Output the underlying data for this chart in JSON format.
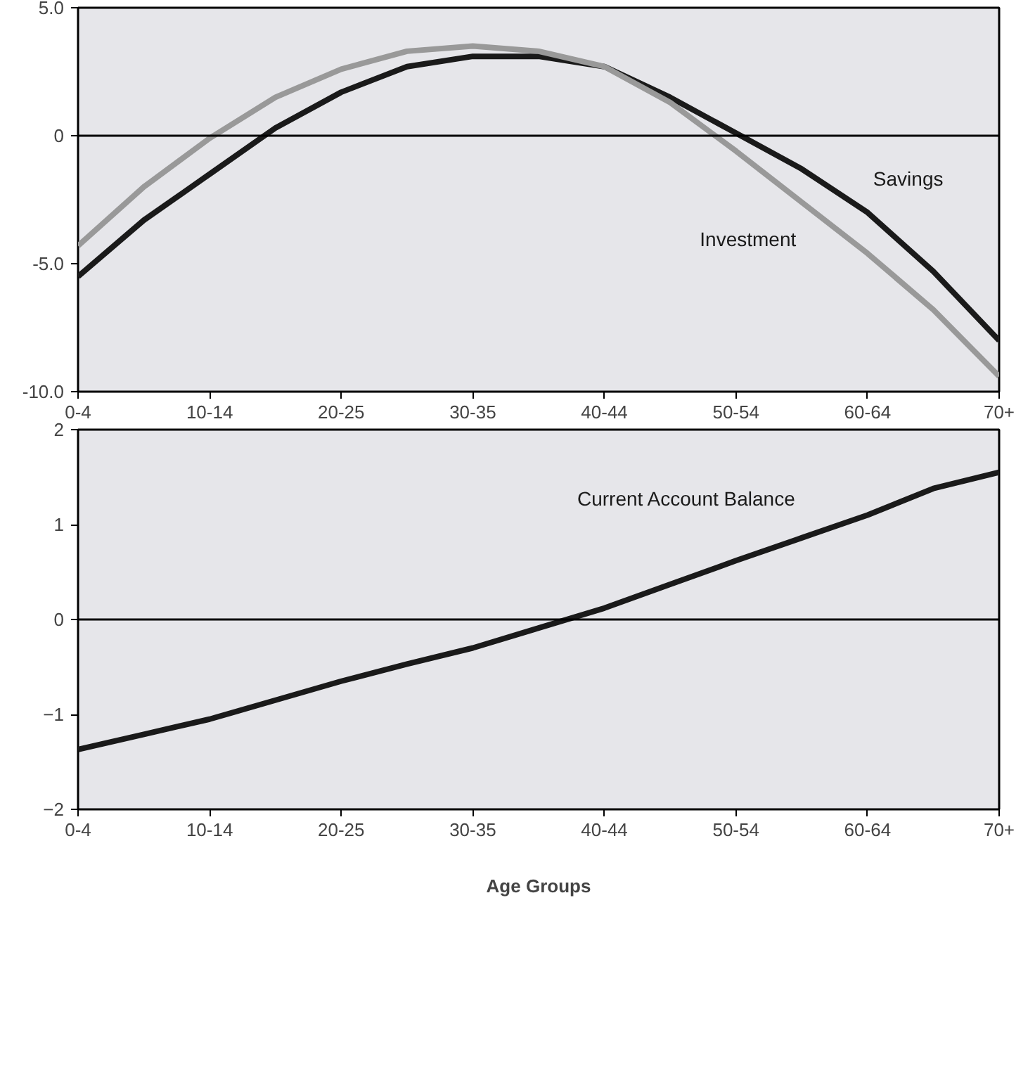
{
  "chart_data": [
    {
      "type": "line",
      "categories": [
        "0-4",
        null,
        "10-14",
        null,
        "20-25",
        null,
        "30-35",
        null,
        "40-44",
        null,
        "50-54",
        null,
        "60-64",
        null,
        "70+"
      ],
      "series": [
        {
          "name": "Savings",
          "color": "#1a1a1a",
          "values": [
            -5.5,
            -3.3,
            -1.5,
            0.3,
            1.7,
            2.7,
            3.1,
            3.1,
            2.7,
            1.5,
            0.1,
            -1.3,
            -3.0,
            -5.3,
            -8.0
          ]
        },
        {
          "name": "Investment",
          "color": "#999999",
          "values": [
            -4.3,
            -2.0,
            -0.1,
            1.5,
            2.6,
            3.3,
            3.5,
            3.3,
            2.7,
            1.3,
            -0.6,
            -2.6,
            -4.6,
            -6.8,
            -9.4
          ]
        }
      ],
      "ylim": [
        -10,
        5
      ],
      "yticks": [
        {
          "value": 5,
          "label": "5.0"
        },
        0,
        {
          "value": -5,
          "label": "-5.0"
        },
        {
          "value": -10,
          "label": "-10.0"
        }
      ],
      "ref_lines": [
        {
          "axis": "y",
          "value": 0,
          "color": "#000000"
        }
      ],
      "grid": false,
      "marker": "none",
      "line_style": "solid"
    },
    {
      "type": "line",
      "categories": [
        "0-4",
        null,
        "10-14",
        null,
        "20-25",
        null,
        "30-35",
        null,
        "40-44",
        null,
        "50-54",
        null,
        "60-64",
        null,
        "70+"
      ],
      "series": [
        {
          "name": "Current Account Balance",
          "color": "#1a1a1a",
          "values": [
            -1.37,
            -1.21,
            -1.05,
            -0.85,
            -0.65,
            -0.47,
            -0.3,
            -0.09,
            0.12,
            0.37,
            0.62,
            0.86,
            1.1,
            1.38,
            1.55
          ]
        }
      ],
      "ylim": [
        -2,
        2
      ],
      "yticks": [
        2,
        1,
        0,
        {
          "value": -1,
          "label": "−1"
        },
        {
          "value": -2,
          "label": "−2"
        }
      ],
      "xlabel": "Age Groups",
      "ref_lines": [
        {
          "axis": "y",
          "value": 0,
          "color": "#000000"
        }
      ],
      "grid": false,
      "marker": "none",
      "line_style": "solid"
    }
  ]
}
